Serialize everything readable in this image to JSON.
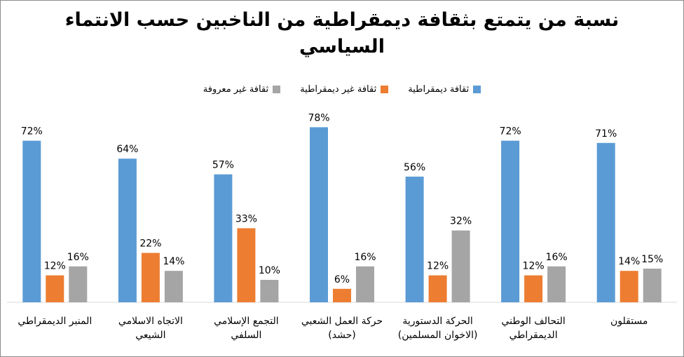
{
  "chart_data": {
    "type": "bar",
    "title": "نسبة من يتمتع بثقافة ديمقراطية من الناخبين حسب الانتماء السياسي",
    "categories": [
      [
        "المنبر الديمقراطي"
      ],
      [
        "الاتجاه الاسلامي",
        "الشيعي"
      ],
      [
        "التجمع الإسلامي",
        "السلفي"
      ],
      [
        "حركة العمل الشعبي",
        "(حشد)"
      ],
      [
        "الحركة الدستورية",
        "(الاخوان المسلمين)"
      ],
      [
        "التحالف الوطني",
        "الديمقراطي"
      ],
      [
        "مستقلون"
      ]
    ],
    "series": [
      {
        "name": "ثقافة ديمقراطية",
        "color": "#5b9bd5",
        "values": [
          72,
          64,
          57,
          78,
          56,
          72,
          71
        ]
      },
      {
        "name": "ثقافة غير ديمقراطية",
        "color": "#ed7d31",
        "values": [
          12,
          22,
          33,
          6,
          12,
          12,
          14
        ]
      },
      {
        "name": "ثقافة غير معروفة",
        "color": "#a5a5a5",
        "values": [
          16,
          14,
          10,
          16,
          32,
          16,
          15
        ]
      }
    ],
    "value_suffix": "%",
    "ylim": [
      0,
      100
    ],
    "grid": false,
    "legend_position": "top"
  }
}
